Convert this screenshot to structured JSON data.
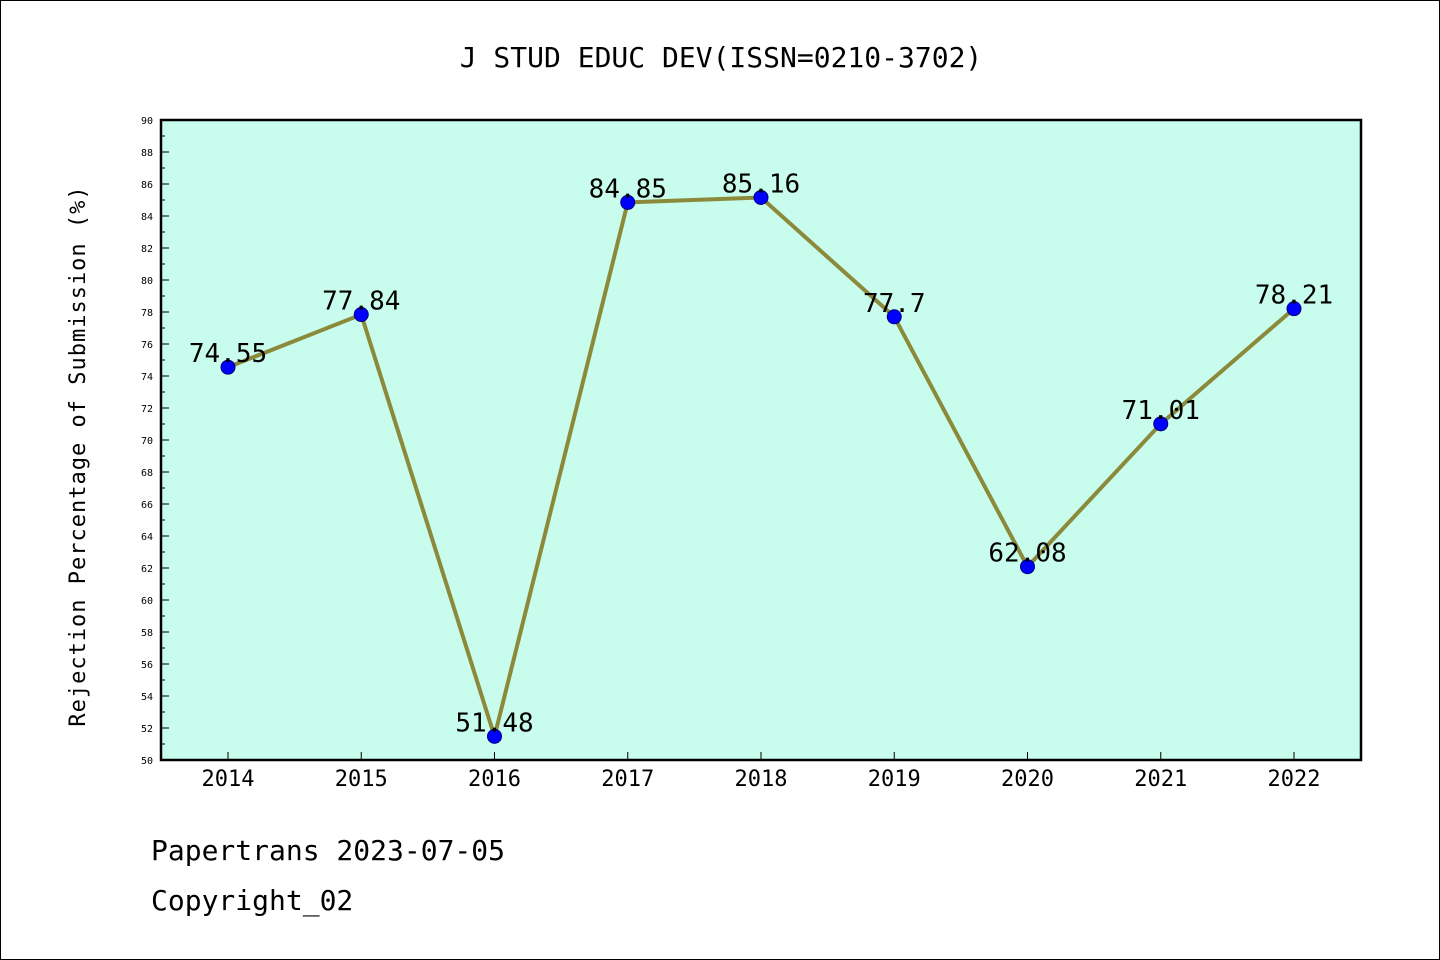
{
  "chart_data": {
    "type": "line",
    "title": "J STUD EDUC DEV(ISSN=0210-3702)",
    "ylabel": "Rejection Percentage of Submission (%)",
    "xlabel": "",
    "categories": [
      "2014",
      "2015",
      "2016",
      "2017",
      "2018",
      "2019",
      "2020",
      "2021",
      "2022"
    ],
    "series": [
      {
        "values": [
          74.55,
          77.84,
          51.48,
          84.85,
          85.16,
          77.7,
          62.08,
          71.01,
          78.21
        ],
        "data_labels": [
          "74.55",
          "77.84",
          "51.48",
          "84.85",
          "85.16",
          "77.7",
          "62.08",
          "71.01",
          "78.21"
        ]
      }
    ],
    "ylim": [
      50,
      90
    ],
    "yticks": [
      "50",
      "52",
      "54",
      "56",
      "58",
      "60",
      "62",
      "64",
      "66",
      "68",
      "70",
      "72",
      "74",
      "76",
      "78",
      "80",
      "82",
      "84",
      "86",
      "88",
      "90"
    ],
    "grid": false,
    "colors": {
      "plot_background": "#c8fcec",
      "line": "#8b8a3b",
      "marker": "#0000ff",
      "marker_edge": "#000080"
    }
  },
  "footer": {
    "line1": "Papertrans 2023-07-05",
    "line2": "Copyright_02"
  }
}
